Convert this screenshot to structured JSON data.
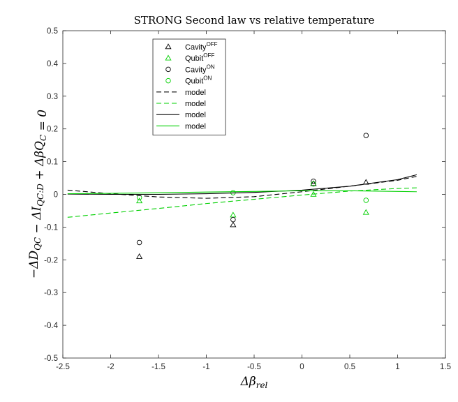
{
  "chart_data": {
    "type": "scatter",
    "title": "STRONG Second law vs relative temperature",
    "xlabel": "Δβrel",
    "xlabel_main": "Δβ",
    "xlabel_sub": "rel",
    "ylabel": "−ΔD_QC − ΔI_QC:D + ΔβQ_C = 0",
    "ylabel_parts": [
      {
        "t": "−Δ",
        "s": ""
      },
      {
        "t": "D",
        "s": "QC"
      },
      {
        "t": " − Δ",
        "s": ""
      },
      {
        "t": "I",
        "s": "QC:D"
      },
      {
        "t": " + Δ",
        "s": ""
      },
      {
        "t": "βQ",
        "s": "C"
      },
      {
        "t": " = 0",
        "s": ""
      }
    ],
    "xlim": [
      -2.5,
      1.5
    ],
    "ylim": [
      -0.5,
      0.5
    ],
    "xticks": [
      -2.5,
      -2,
      -1.5,
      -1,
      -0.5,
      0,
      0.5,
      1,
      1.5
    ],
    "xtick_labels": [
      "-2.5",
      "-2",
      "-1.5",
      "-1",
      "-0.5",
      "0",
      "0.5",
      "1",
      "1.5"
    ],
    "yticks": [
      -0.5,
      -0.4,
      -0.3,
      -0.2,
      -0.1,
      0,
      0.1,
      0.2,
      0.3,
      0.4,
      0.5
    ],
    "ytick_labels": [
      "-0.5",
      "-0.4",
      "-0.3",
      "-0.2",
      "-0.1",
      "0",
      "0.1",
      "0.2",
      "0.3",
      "0.4",
      "0.5"
    ],
    "grid": false,
    "legend_position": "top-left",
    "series": [
      {
        "name": "Cavity",
        "sup": "OFF",
        "kind": "points",
        "marker": "triangle",
        "color": "#000000",
        "x": [
          -1.7,
          -0.72,
          0.12,
          0.67
        ],
        "y": [
          -0.19,
          -0.093,
          0.033,
          0.037
        ]
      },
      {
        "name": "Qubit",
        "sup": "OFF",
        "kind": "points",
        "marker": "triangle",
        "color": "#00d000",
        "x": [
          -1.7,
          -0.72,
          0.12,
          0.67
        ],
        "y": [
          -0.02,
          -0.063,
          0.0,
          -0.055
        ]
      },
      {
        "name": "Cavity",
        "sup": "ON",
        "kind": "points",
        "marker": "circle",
        "color": "#000000",
        "x": [
          -1.7,
          -0.72,
          0.12,
          0.67
        ],
        "y": [
          -0.147,
          -0.077,
          0.04,
          0.18
        ]
      },
      {
        "name": "Qubit",
        "sup": "ON",
        "kind": "points",
        "marker": "circle",
        "color": "#00d000",
        "x": [
          -1.7,
          -0.72,
          0.12,
          0.67
        ],
        "y": [
          -0.01,
          0.005,
          0.032,
          -0.018
        ]
      },
      {
        "name": "model",
        "sup": "",
        "kind": "line",
        "dash": "dashed",
        "color": "#000000",
        "x": [
          -2.45,
          -2.0,
          -1.5,
          -1.0,
          -0.5,
          0.0,
          0.5,
          1.0,
          1.2
        ],
        "y": [
          0.013,
          0.002,
          -0.008,
          -0.012,
          -0.007,
          0.008,
          0.025,
          0.043,
          0.055
        ]
      },
      {
        "name": "model",
        "sup": "",
        "kind": "line",
        "dash": "dashed",
        "color": "#00d000",
        "x": [
          -2.45,
          -2.0,
          -1.5,
          -1.0,
          -0.5,
          0.0,
          0.5,
          1.0,
          1.2
        ],
        "y": [
          -0.07,
          -0.057,
          -0.043,
          -0.028,
          -0.015,
          -0.002,
          0.01,
          0.018,
          0.02
        ]
      },
      {
        "name": "model",
        "sup": "",
        "kind": "line",
        "dash": "solid",
        "color": "#000000",
        "x": [
          -2.45,
          -2.0,
          -1.5,
          -1.0,
          -0.5,
          0.0,
          0.5,
          1.0,
          1.2
        ],
        "y": [
          0.001,
          0.0,
          0.0,
          0.002,
          0.006,
          0.013,
          0.025,
          0.045,
          0.06
        ]
      },
      {
        "name": "model",
        "sup": "",
        "kind": "line",
        "dash": "solid",
        "color": "#00d000",
        "x": [
          -2.45,
          -2.0,
          -1.5,
          -1.0,
          -0.5,
          0.0,
          0.5,
          1.0,
          1.2
        ],
        "y": [
          0.002,
          0.003,
          0.005,
          0.007,
          0.009,
          0.011,
          0.011,
          0.009,
          0.008
        ]
      }
    ]
  }
}
